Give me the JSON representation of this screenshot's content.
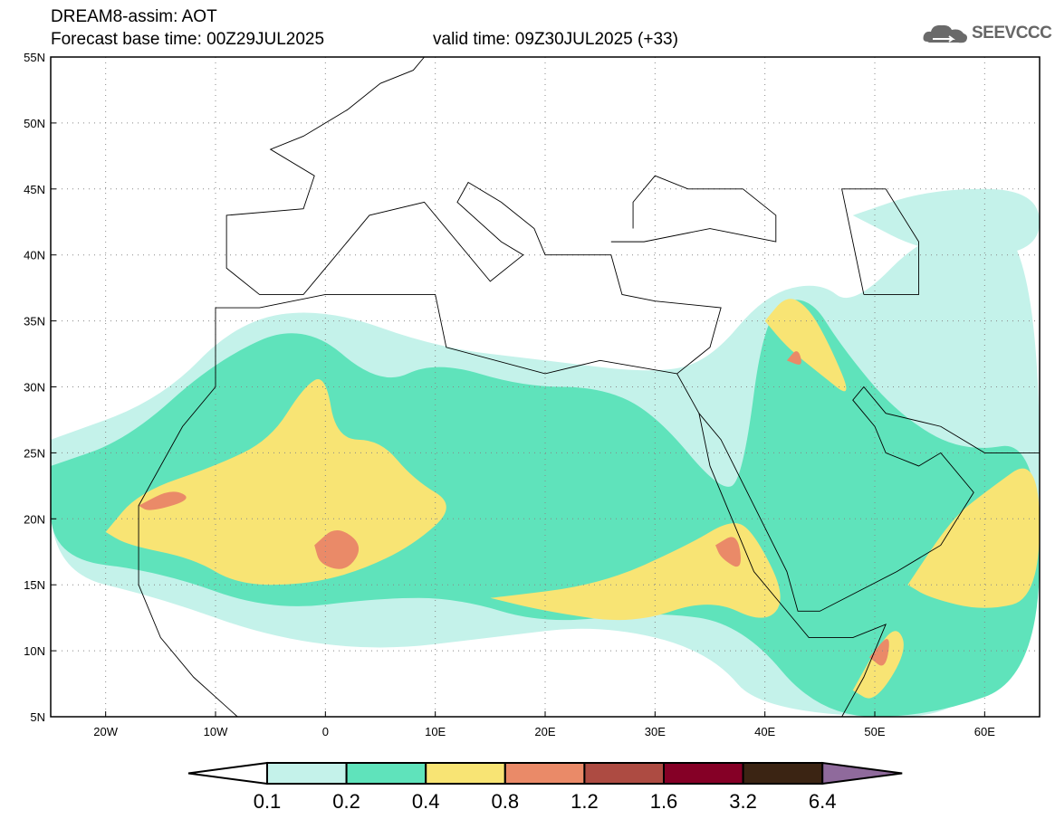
{
  "header": {
    "title": "DREAM8-assim: AOT",
    "forecast_base": "Forecast base time: 00Z29JUL2025",
    "valid_time": "valid time: 09Z30JUL2025 (+33)",
    "logo_text": "SEEVCCC"
  },
  "map": {
    "lat_labels": [
      "55N",
      "50N",
      "45N",
      "40N",
      "35N",
      "30N",
      "25N",
      "20N",
      "15N",
      "10N",
      "5N"
    ],
    "lat_values": [
      55,
      50,
      45,
      40,
      35,
      30,
      25,
      20,
      15,
      10,
      5
    ],
    "lon_labels": [
      "20W",
      "10W",
      "0",
      "10E",
      "20E",
      "30E",
      "40E",
      "50E",
      "60E"
    ],
    "lon_values": [
      -20,
      -10,
      0,
      10,
      20,
      30,
      40,
      50,
      60
    ],
    "lon_range": [
      -25,
      65
    ],
    "lat_range": [
      5,
      55
    ]
  },
  "colorbar": {
    "labels": [
      "0.1",
      "0.2",
      "0.4",
      "0.8",
      "1.2",
      "1.6",
      "3.2",
      "6.4"
    ],
    "colors": [
      "#c4f2ea",
      "#5fe3bb",
      "#f8e474",
      "#ea8a68",
      "#ad4b42",
      "#850026",
      "#3b2413"
    ],
    "under_color": "#ffffff",
    "over_color": "#8f6a9c"
  }
}
